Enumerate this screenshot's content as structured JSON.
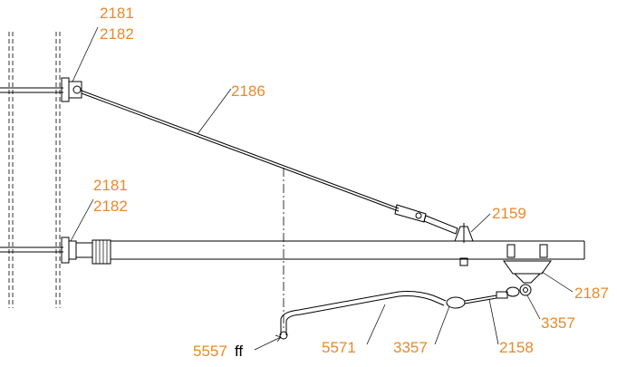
{
  "labels": [
    "2181",
    "2182",
    "2186",
    "2181",
    "2182",
    "2159",
    "2187",
    "3357",
    "5557",
    "ff",
    "5571",
    "3357",
    "2158"
  ]
}
